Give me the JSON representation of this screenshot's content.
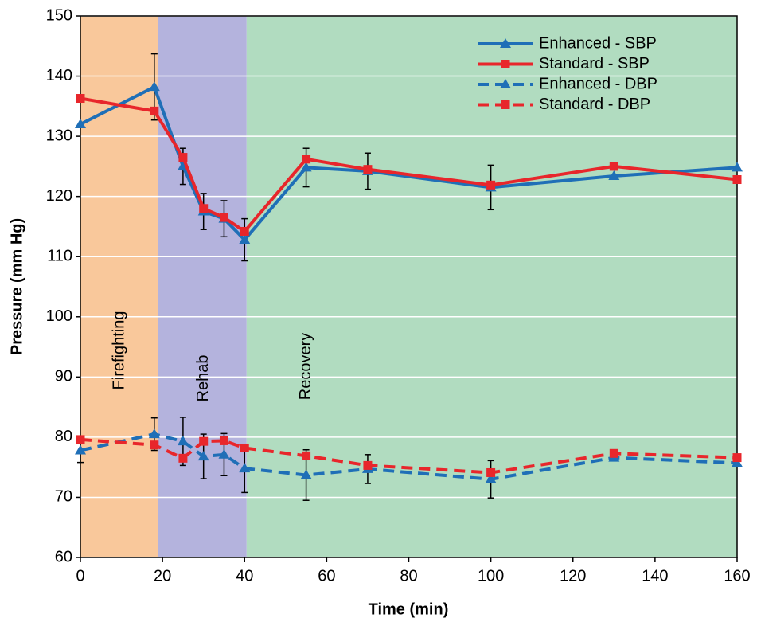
{
  "chart_data": {
    "type": "line",
    "x_label": "Time (min)",
    "y_label": "Pressure (mm Hg)",
    "xlim": [
      0,
      160
    ],
    "ylim": [
      60,
      150
    ],
    "xticks": [
      0,
      20,
      40,
      60,
      80,
      100,
      120,
      140,
      160
    ],
    "yticks": [
      60,
      70,
      80,
      90,
      100,
      110,
      120,
      130,
      140,
      150
    ],
    "grid": true,
    "legend": "upper right",
    "bands": [
      {
        "label": "Firefighting",
        "start": 0,
        "end": 19,
        "color": "#f9c89b"
      },
      {
        "label": "Rehab",
        "start": 19,
        "end": 40.5,
        "color": "#b4b3dd"
      },
      {
        "label": "Recovery",
        "start": 40.5,
        "end": 160,
        "color": "#b1dcc0"
      }
    ],
    "x": [
      0,
      18,
      25,
      30,
      35,
      40,
      55,
      70,
      100,
      130,
      160
    ],
    "series": [
      {
        "name": "Enhanced - SBP",
        "color": "#1f6fb7",
        "marker": "triangle",
        "line_style": "solid",
        "values": [
          132,
          138.2,
          125,
          117.5,
          116.3,
          112.8,
          124.8,
          124.2,
          121.5,
          123.4,
          124.8
        ],
        "errors": [
          null,
          5.5,
          3,
          3,
          3,
          3.5,
          3.2,
          3,
          3.7,
          null,
          null
        ]
      },
      {
        "name": "Standard - SBP",
        "color": "#e8262b",
        "marker": "square",
        "line_style": "solid",
        "values": [
          136.3,
          134.2,
          126.5,
          118,
          116.5,
          114.2,
          126.2,
          124.5,
          121.9,
          125,
          122.8
        ]
      },
      {
        "name": "Enhanced - DBP",
        "color": "#1f6fb7",
        "marker": "triangle",
        "line_style": "dashed",
        "values": [
          77.8,
          80.5,
          79.3,
          76.8,
          77.1,
          74.8,
          73.7,
          74.7,
          73,
          76.6,
          75.7
        ],
        "errors": [
          2,
          2.7,
          4,
          3.7,
          3.5,
          4,
          4.2,
          2.4,
          3.1,
          null,
          null
        ]
      },
      {
        "name": "Standard - DBP",
        "color": "#e8262b",
        "marker": "square",
        "line_style": "dashed",
        "values": [
          79.6,
          78.7,
          76.5,
          79.3,
          79.4,
          78.2,
          76.9,
          75.3,
          74.1,
          77.3,
          76.6
        ]
      }
    ]
  }
}
